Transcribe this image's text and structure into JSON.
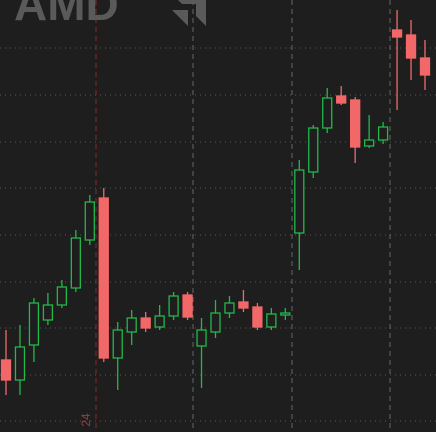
{
  "chart_data": {
    "type": "candlestick",
    "watermark": "AMD",
    "marker_label": "24",
    "up_color": "#22b84a",
    "down_color": "#f26868",
    "ylim": [
      0,
      432
    ],
    "open": [
      72,
      52,
      87,
      112,
      127,
      144,
      192,
      234,
      74,
      100,
      114,
      105,
      116,
      137,
      86,
      100,
      119,
      130,
      125,
      105,
      117,
      199,
      260,
      304,
      336,
      332,
      286,
      292,
      402,
      397,
      374
    ],
    "close": [
      52,
      85,
      129,
      127,
      145,
      194,
      230,
      74,
      102,
      114,
      104,
      116,
      136,
      115,
      102,
      119,
      129,
      124,
      105,
      118,
      119,
      262,
      304,
      334,
      329,
      285,
      292,
      305,
      395,
      374,
      357
    ],
    "high": [
      102,
      107,
      134,
      139,
      152,
      202,
      237,
      244,
      110,
      122,
      120,
      127,
      140,
      140,
      114,
      132,
      136,
      142,
      129,
      124,
      124,
      272,
      307,
      344,
      346,
      335,
      317,
      310,
      422,
      412,
      392
    ],
    "low": [
      37,
      37,
      70,
      107,
      124,
      140,
      187,
      70,
      42,
      87,
      100,
      102,
      112,
      112,
      44,
      94,
      114,
      120,
      102,
      102,
      112,
      162,
      254,
      299,
      327,
      269,
      284,
      288,
      322,
      352,
      342
    ]
  }
}
